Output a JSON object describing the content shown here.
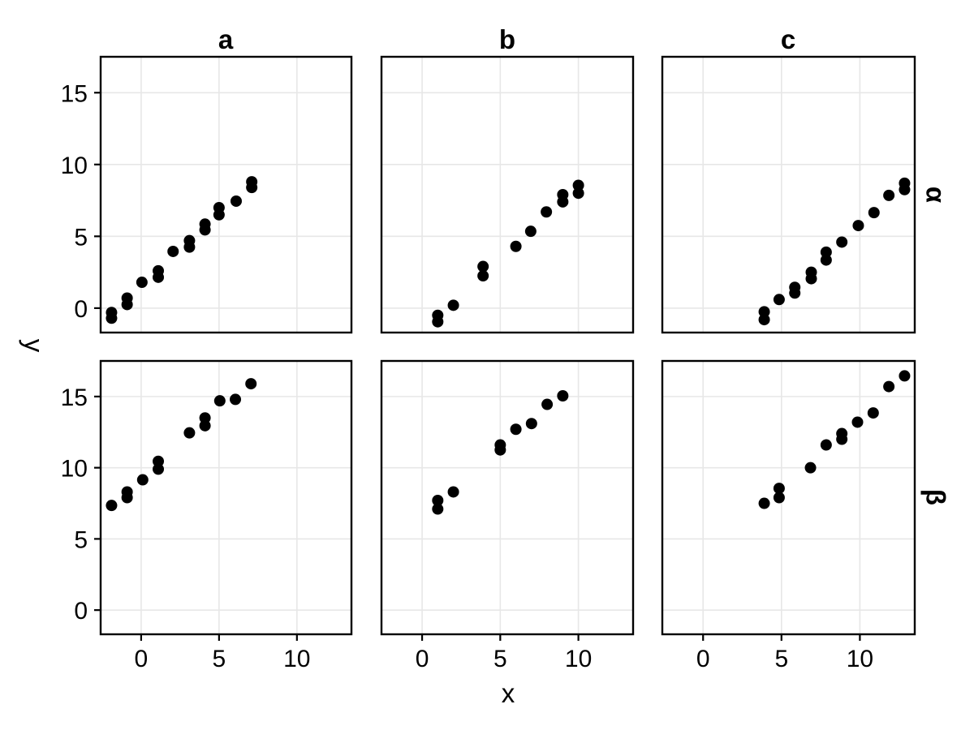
{
  "chart_data": {
    "type": "scatter",
    "title": "",
    "xlabel": "x",
    "ylabel": "y",
    "facet_columns": [
      "a",
      "b",
      "c"
    ],
    "facet_rows": [
      "α",
      "β"
    ],
    "x_domain": [
      -2.6,
      13.5
    ],
    "y_domain": [
      -1.7,
      17.5
    ],
    "x_ticks": [
      0,
      5,
      10
    ],
    "y_ticks": [
      0,
      5,
      10,
      15
    ],
    "grid": "major",
    "legend": "none",
    "point_color": "#000000",
    "grid_color": "#e7e7e7",
    "border_color": "#000000",
    "point_radius_px": 7,
    "panels": [
      {
        "column": "a",
        "row": "α",
        "points": [
          [
            -1.9,
            -0.3
          ],
          [
            -1.9,
            -0.7
          ],
          [
            -0.9,
            0.7
          ],
          [
            -0.9,
            0.25
          ],
          [
            0.05,
            1.8
          ],
          [
            1.1,
            2.6
          ],
          [
            1.1,
            2.15
          ],
          [
            2.05,
            3.95
          ],
          [
            3.1,
            4.7
          ],
          [
            3.1,
            4.25
          ],
          [
            4.1,
            5.85
          ],
          [
            4.1,
            5.45
          ],
          [
            5.0,
            7.0
          ],
          [
            5.0,
            6.5
          ],
          [
            6.1,
            7.45
          ],
          [
            7.1,
            8.8
          ],
          [
            7.1,
            8.4
          ]
        ]
      },
      {
        "column": "b",
        "row": "α",
        "points": [
          [
            1.0,
            -0.5
          ],
          [
            1.0,
            -0.95
          ],
          [
            2.0,
            0.2
          ],
          [
            3.9,
            2.9
          ],
          [
            3.9,
            2.25
          ],
          [
            6.0,
            4.3
          ],
          [
            6.95,
            5.35
          ],
          [
            7.95,
            6.7
          ],
          [
            9.0,
            7.9
          ],
          [
            9.0,
            7.4
          ],
          [
            10.0,
            8.55
          ],
          [
            10.0,
            8.0
          ]
        ]
      },
      {
        "column": "c",
        "row": "α",
        "points": [
          [
            3.9,
            -0.25
          ],
          [
            3.9,
            -0.8
          ],
          [
            4.85,
            0.6
          ],
          [
            5.85,
            1.45
          ],
          [
            5.85,
            1.05
          ],
          [
            6.9,
            2.5
          ],
          [
            6.9,
            2.05
          ],
          [
            7.85,
            3.9
          ],
          [
            7.85,
            3.35
          ],
          [
            8.85,
            4.6
          ],
          [
            9.9,
            5.75
          ],
          [
            10.9,
            6.65
          ],
          [
            11.85,
            7.85
          ],
          [
            12.85,
            8.7
          ],
          [
            12.85,
            8.25
          ]
        ]
      },
      {
        "column": "a",
        "row": "β",
        "points": [
          [
            -1.9,
            7.35
          ],
          [
            -0.9,
            8.3
          ],
          [
            -0.9,
            7.9
          ],
          [
            0.1,
            9.15
          ],
          [
            1.1,
            10.45
          ],
          [
            1.1,
            9.9
          ],
          [
            3.1,
            12.45
          ],
          [
            4.1,
            13.5
          ],
          [
            4.1,
            12.95
          ],
          [
            5.05,
            14.7
          ],
          [
            6.05,
            14.8
          ],
          [
            7.05,
            15.9
          ]
        ]
      },
      {
        "column": "b",
        "row": "β",
        "points": [
          [
            1.0,
            7.7
          ],
          [
            1.0,
            7.1
          ],
          [
            2.0,
            8.3
          ],
          [
            5.0,
            11.6
          ],
          [
            5.0,
            11.25
          ],
          [
            6.0,
            12.7
          ],
          [
            7.0,
            13.1
          ],
          [
            8.0,
            14.45
          ],
          [
            9.0,
            15.05
          ]
        ]
      },
      {
        "column": "c",
        "row": "β",
        "points": [
          [
            3.9,
            7.5
          ],
          [
            4.85,
            8.55
          ],
          [
            4.85,
            7.9
          ],
          [
            6.85,
            10.0
          ],
          [
            7.85,
            11.6
          ],
          [
            8.85,
            12.4
          ],
          [
            8.85,
            12.0
          ],
          [
            9.85,
            13.2
          ],
          [
            10.85,
            13.85
          ],
          [
            11.85,
            15.7
          ],
          [
            12.85,
            16.45
          ]
        ]
      }
    ]
  }
}
